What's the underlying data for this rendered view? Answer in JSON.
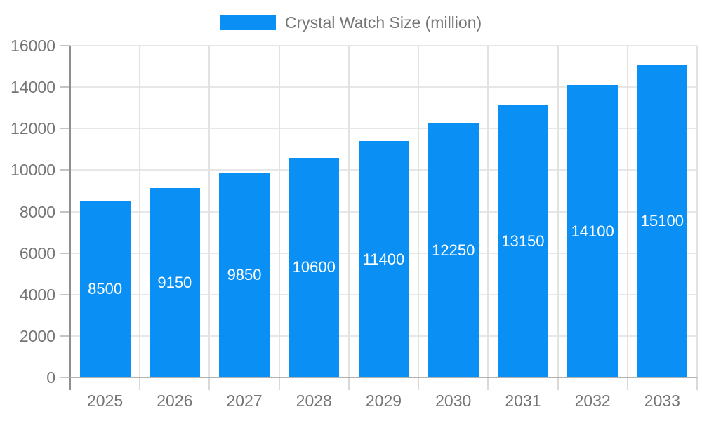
{
  "chart_data": {
    "type": "bar",
    "title": "Crystal Watch Size (million)",
    "series_name": "Crystal Watch Size (million)",
    "categories": [
      "2025",
      "2026",
      "2027",
      "2028",
      "2029",
      "2030",
      "2031",
      "2032",
      "2033"
    ],
    "values": [
      8500,
      9150,
      9850,
      10600,
      11400,
      12250,
      13150,
      14100,
      15100
    ],
    "value_labels": [
      "8500",
      "9150",
      "9850",
      "10600",
      "11400",
      "12250",
      "13150",
      "14100",
      "15100"
    ],
    "xlabel": "",
    "ylabel": "",
    "ylim": [
      0,
      16000
    ],
    "ytick_step": 2000,
    "ytick_labels": [
      "0",
      "2000",
      "4000",
      "6000",
      "8000",
      "10000",
      "12000",
      "14000",
      "16000"
    ],
    "grid": "on",
    "legend_position": "top-center",
    "value_label_position": "inside-middle",
    "colors": {
      "bar": "#0a90f5",
      "bar_value_text": "#ffffff",
      "axis_text": "#757575",
      "grid_line_h": "#e7e7e7",
      "grid_line_v": "#e2e2e2",
      "y_tick_line": "#c4c4c4",
      "x_tick_line": "#d9d9d9",
      "x_axis_line": "#b3b3b3",
      "y_axis_line": "#8f8f8f",
      "background": "#ffffff"
    }
  },
  "legend": {
    "label": "Crystal Watch Size (million)"
  }
}
